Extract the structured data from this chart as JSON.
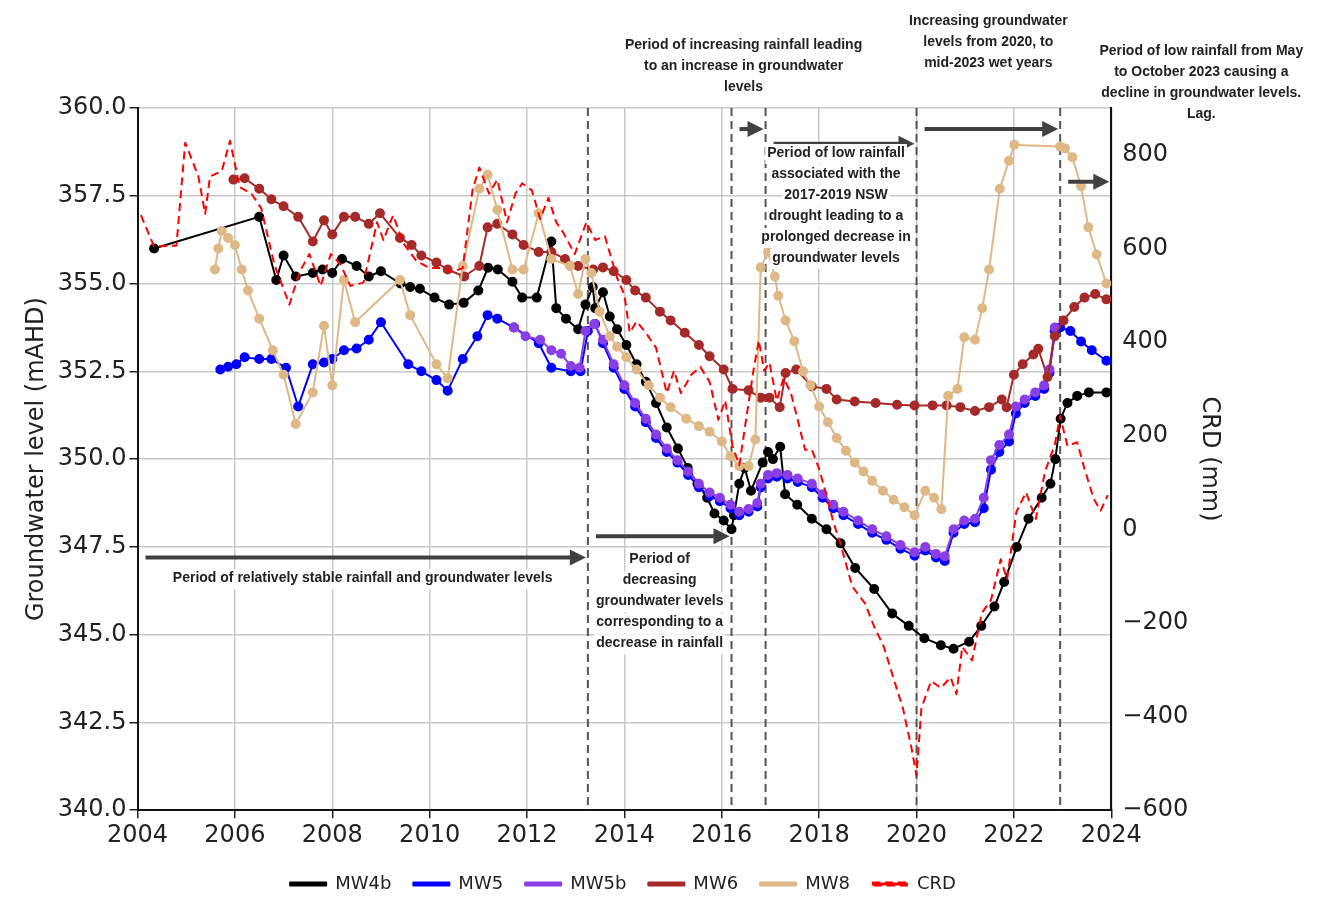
{
  "chart_data": {
    "type": "line",
    "ylabel": "Groundwater level (mAHD)",
    "y2label": "CRD (mm)",
    "xlim": [
      2004,
      2024
    ],
    "xticks": [
      2004,
      2006,
      2008,
      2010,
      2012,
      2014,
      2016,
      2018,
      2020,
      2022,
      2024
    ],
    "ylim": [
      340,
      360
    ],
    "yticks": [
      {
        "value": 340,
        "label": "340.0"
      },
      {
        "value": 342.5,
        "label": "342.5"
      },
      {
        "value": 345,
        "label": "345.0"
      },
      {
        "value": 347.5,
        "label": "347.5"
      },
      {
        "value": 350,
        "label": "350.0"
      },
      {
        "value": 352.5,
        "label": "352.5"
      },
      {
        "value": 355,
        "label": "355.0"
      },
      {
        "value": 357.5,
        "label": "357.5"
      },
      {
        "value": 360,
        "label": "360.0"
      }
    ],
    "y2lim": [
      -600,
      900
    ],
    "y2ticks": [
      {
        "value": -600,
        "label": "−600"
      },
      {
        "value": -400,
        "label": "−400"
      },
      {
        "value": -200,
        "label": "−200"
      },
      0,
      200,
      400,
      600,
      800
    ],
    "grid": true,
    "legend": "bottom",
    "series": [
      {
        "name": "MW4b",
        "color": "#000000",
        "marker": "circle",
        "line_style": "solid",
        "x": [
          2004.34,
          2006.5,
          2006.85,
          2007.0,
          2007.25,
          2007.6,
          2007.8,
          2008.0,
          2008.2,
          2008.5,
          2008.75,
          2009.0,
          2009.4,
          2009.6,
          2009.8,
          2010.1,
          2010.4,
          2010.7,
          2011.0,
          2011.2,
          2011.4,
          2011.7,
          2011.9,
          2012.2,
          2012.5,
          2012.6,
          2012.8,
          2013.05,
          2013.2,
          2013.35,
          2013.4,
          2013.56,
          2013.7,
          2013.85,
          2014.04,
          2014.25,
          2014.44,
          2014.65,
          2014.87,
          2015.1,
          2015.3,
          2015.5,
          2015.7,
          2015.85,
          2016.04,
          2016.2,
          2016.25,
          2016.36,
          2016.47,
          2016.6,
          2016.84,
          2016.95,
          2017.05,
          2017.2,
          2017.3,
          2017.55,
          2017.85,
          2018.15,
          2018.44,
          2018.74,
          2019.13,
          2019.5,
          2019.84,
          2020.16,
          2020.5,
          2020.76,
          2021.08,
          2021.33,
          2021.6,
          2021.8,
          2022.06,
          2022.3,
          2022.57,
          2022.75,
          2022.85,
          2022.96,
          2023.1,
          2023.3,
          2023.54,
          2023.9
        ],
        "values": [
          356.0,
          356.9,
          355.1,
          355.8,
          355.2,
          355.3,
          355.4,
          355.3,
          355.7,
          355.5,
          355.2,
          355.35,
          355.0,
          354.9,
          354.85,
          354.6,
          354.4,
          354.45,
          354.8,
          355.45,
          355.4,
          355.05,
          354.6,
          354.6,
          356.2,
          354.3,
          354.0,
          353.7,
          354.4,
          354.9,
          354.3,
          354.75,
          354.06,
          353.7,
          353.25,
          352.7,
          352.2,
          351.6,
          350.9,
          350.3,
          349.75,
          349.3,
          348.9,
          348.45,
          348.25,
          348.0,
          348.4,
          349.3,
          349.75,
          349.1,
          349.9,
          350.2,
          350.0,
          350.35,
          349.0,
          348.7,
          348.3,
          348.0,
          347.6,
          346.9,
          346.3,
          345.6,
          345.25,
          344.9,
          344.7,
          344.6,
          344.8,
          345.25,
          345.8,
          346.5,
          347.5,
          348.3,
          348.9,
          349.3,
          350.0,
          351.15,
          351.6,
          351.8,
          351.9,
          351.9
        ]
      },
      {
        "name": "MW5",
        "color": "#0000ff",
        "marker": "circle",
        "line_style": "solid",
        "x": [
          2005.7,
          2005.86,
          2006.03,
          2006.2,
          2006.5,
          2006.75,
          2007.05,
          2007.3,
          2007.6,
          2007.83,
          2008.0,
          2008.24,
          2008.5,
          2008.75,
          2009.0,
          2009.56,
          2009.83,
          2010.14,
          2010.37,
          2010.68,
          2010.98,
          2011.19,
          2011.39,
          2011.73,
          2012.24,
          2012.5,
          2012.9,
          2013.1,
          2013.25,
          2013.4,
          2013.56,
          2013.78,
          2014.0,
          2014.22,
          2014.44,
          2014.65,
          2014.87,
          2015.09,
          2015.31,
          2015.53,
          2015.75,
          2015.96,
          2016.18,
          2016.36,
          2016.55,
          2016.73,
          2016.8,
          2016.95,
          2017.13,
          2017.35,
          2017.56,
          2017.85,
          2018.07,
          2018.29,
          2018.5,
          2018.8,
          2019.09,
          2019.38,
          2019.67,
          2019.96,
          2020.18,
          2020.4,
          2020.58,
          2020.76,
          2020.98,
          2021.2,
          2021.38,
          2021.53,
          2021.7,
          2021.9,
          2022.04,
          2022.22,
          2022.44,
          2022.62,
          2022.73,
          2022.84,
          2022.95,
          2023.16,
          2023.38,
          2023.6,
          2023.9
        ],
        "values": [
          352.55,
          352.63,
          352.7,
          352.9,
          352.85,
          352.85,
          352.6,
          351.5,
          352.7,
          352.75,
          352.85,
          353.1,
          353.15,
          353.4,
          353.9,
          352.7,
          352.5,
          352.25,
          351.95,
          352.85,
          353.5,
          354.1,
          354.0,
          353.75,
          353.3,
          352.6,
          352.5,
          352.5,
          353.65,
          353.85,
          353.3,
          352.6,
          352.0,
          351.5,
          351.05,
          350.6,
          350.2,
          349.9,
          349.55,
          349.2,
          348.95,
          348.8,
          348.6,
          348.4,
          348.5,
          348.65,
          349.2,
          349.45,
          349.5,
          349.45,
          349.35,
          349.2,
          348.9,
          348.6,
          348.4,
          348.15,
          347.9,
          347.7,
          347.45,
          347.25,
          347.4,
          347.2,
          347.1,
          347.9,
          348.15,
          348.2,
          348.6,
          349.7,
          350.2,
          350.5,
          351.3,
          351.6,
          351.8,
          352.0,
          352.45,
          353.65,
          353.75,
          353.65,
          353.35,
          353.1,
          352.8
        ]
      },
      {
        "name": "MW5b",
        "color": "#8a3ee6",
        "marker": "circle",
        "line_style": "solid",
        "x": [
          2011.73,
          2011.97,
          2012.27,
          2012.5,
          2012.7,
          2012.9,
          2013.08,
          2013.2,
          2013.38,
          2013.56,
          2013.78,
          2014.0,
          2014.22,
          2014.44,
          2014.65,
          2014.87,
          2015.09,
          2015.31,
          2015.53,
          2015.75,
          2015.96,
          2016.18,
          2016.36,
          2016.55,
          2016.73,
          2016.8,
          2016.95,
          2017.13,
          2017.35,
          2017.56,
          2017.85,
          2018.07,
          2018.29,
          2018.5,
          2018.8,
          2019.09,
          2019.38,
          2019.67,
          2019.96,
          2020.18,
          2020.4,
          2020.58,
          2020.76,
          2020.98,
          2021.2,
          2021.38,
          2021.53,
          2021.7,
          2021.9,
          2022.04,
          2022.22,
          2022.44,
          2022.62,
          2022.73,
          2022.84
        ],
        "values": [
          353.75,
          353.5,
          353.4,
          353.1,
          353.0,
          352.65,
          352.6,
          353.65,
          353.85,
          353.4,
          352.7,
          352.1,
          351.6,
          351.15,
          350.7,
          350.3,
          349.97,
          349.65,
          349.3,
          349.05,
          348.9,
          348.7,
          348.5,
          348.58,
          348.75,
          349.3,
          349.55,
          349.6,
          349.55,
          349.45,
          349.3,
          349.0,
          348.7,
          348.5,
          348.25,
          348.0,
          347.8,
          347.55,
          347.35,
          347.5,
          347.3,
          347.23,
          348.0,
          348.25,
          348.3,
          348.9,
          349.97,
          350.4,
          350.7,
          351.5,
          351.7,
          351.9,
          352.1,
          352.55,
          353.75
        ]
      },
      {
        "name": "MW6",
        "color": "#a52a2a",
        "marker": "circle",
        "line_style": "solid",
        "x": [
          2005.97,
          2006.2,
          2006.5,
          2006.75,
          2007.0,
          2007.3,
          2007.6,
          2007.83,
          2008.0,
          2008.24,
          2008.47,
          2008.75,
          2008.98,
          2009.39,
          2009.63,
          2009.83,
          2010.14,
          2010.37,
          2010.71,
          2011.02,
          2011.19,
          2011.39,
          2011.7,
          2011.93,
          2012.24,
          2012.5,
          2012.78,
          2013.05,
          2013.36,
          2013.56,
          2013.78,
          2014.04,
          2014.22,
          2014.44,
          2014.73,
          2014.95,
          2015.24,
          2015.53,
          2015.75,
          2016.04,
          2016.22,
          2016.55,
          2016.8,
          2016.98,
          2017.19,
          2017.31,
          2017.53,
          2017.85,
          2018.15,
          2018.36,
          2018.73,
          2019.16,
          2019.6,
          2019.96,
          2020.33,
          2020.62,
          2020.9,
          2021.2,
          2021.49,
          2021.75,
          2021.85,
          2022.0,
          2022.18,
          2022.4,
          2022.5,
          2022.69,
          2022.84,
          2023.02,
          2023.24,
          2023.45,
          2023.67,
          2023.9
        ],
        "values": [
          357.96,
          358.0,
          357.7,
          357.4,
          357.2,
          356.9,
          356.2,
          356.8,
          356.4,
          356.9,
          356.9,
          356.7,
          357.0,
          356.3,
          356.1,
          355.8,
          355.6,
          355.4,
          355.2,
          355.5,
          356.6,
          356.7,
          356.4,
          356.1,
          355.9,
          355.9,
          355.7,
          355.5,
          355.4,
          355.46,
          355.35,
          355.1,
          354.8,
          354.6,
          354.2,
          353.95,
          353.6,
          353.25,
          352.93,
          352.55,
          352.0,
          351.96,
          351.75,
          351.75,
          351.48,
          352.45,
          352.55,
          352.07,
          352.0,
          351.7,
          351.64,
          351.6,
          351.55,
          351.53,
          351.53,
          351.53,
          351.48,
          351.37,
          351.48,
          351.7,
          351.48,
          352.4,
          352.7,
          352.98,
          353.14,
          352.34,
          353.5,
          353.95,
          354.33,
          354.6,
          354.7,
          354.55
        ]
      },
      {
        "name": "MW8",
        "color": "#deb887",
        "marker": "circle",
        "line_style": "solid",
        "x": [
          2005.59,
          2005.66,
          2005.73,
          2005.86,
          2006.0,
          2006.14,
          2006.27,
          2006.5,
          2006.78,
          2007.0,
          2007.25,
          2007.6,
          2007.83,
          2008.0,
          2008.24,
          2008.47,
          2009.39,
          2009.6,
          2010.14,
          2010.37,
          2010.68,
          2011.02,
          2011.19,
          2011.39,
          2011.7,
          2011.93,
          2012.24,
          2012.5,
          2012.88,
          2013.05,
          2013.2,
          2013.32,
          2013.49,
          2013.7,
          2013.85,
          2014.04,
          2014.25,
          2014.5,
          2014.73,
          2014.95,
          2015.27,
          2015.53,
          2015.75,
          2016.0,
          2016.18,
          2016.36,
          2016.55,
          2016.69,
          2016.8,
          2016.95,
          2017.09,
          2017.16,
          2017.31,
          2017.49,
          2017.67,
          2017.82,
          2018.0,
          2018.18,
          2018.36,
          2018.55,
          2018.73,
          2018.91,
          2019.09,
          2019.31,
          2019.53,
          2019.75,
          2019.96,
          2020.18,
          2020.36,
          2020.51,
          2020.65,
          2020.84,
          2020.98,
          2021.2,
          2021.35,
          2021.49,
          2021.71,
          2021.9,
          2022.01,
          2022.95,
          2023.05,
          2023.2,
          2023.38,
          2023.53,
          2023.7,
          2023.9
        ],
        "values": [
          355.4,
          356.0,
          356.5,
          356.3,
          356.1,
          355.4,
          354.8,
          354.0,
          353.1,
          352.4,
          351.0,
          351.9,
          353.8,
          352.1,
          355.1,
          353.9,
          355.1,
          354.1,
          352.7,
          352.3,
          355.5,
          357.7,
          358.1,
          357.1,
          355.4,
          355.4,
          357.0,
          355.7,
          355.5,
          354.7,
          355.7,
          355.3,
          354.2,
          353.5,
          353.2,
          352.9,
          352.55,
          352.1,
          351.75,
          351.48,
          351.15,
          350.94,
          350.78,
          350.5,
          350.08,
          349.8,
          349.8,
          350.56,
          355.46,
          355.9,
          355.2,
          354.65,
          353.95,
          353.36,
          352.5,
          352.1,
          351.5,
          351.05,
          350.6,
          350.24,
          349.9,
          349.65,
          349.38,
          349.1,
          348.84,
          348.63,
          348.4,
          349.1,
          348.9,
          348.57,
          351.8,
          352.0,
          353.47,
          353.4,
          354.3,
          355.4,
          357.7,
          358.5,
          358.95,
          358.9,
          358.85,
          358.6,
          357.77,
          356.6,
          355.83,
          355.0
        ]
      },
      {
        "name": "CRD",
        "color": "#ff0000",
        "marker": "none",
        "line_style": "dashed",
        "axis": "y2",
        "x": [
          2004.07,
          2004.34,
          2004.8,
          2004.98,
          2005.25,
          2005.39,
          2005.49,
          2005.73,
          2005.9,
          2006.1,
          2006.34,
          2006.54,
          2006.81,
          2007.12,
          2007.33,
          2007.53,
          2007.76,
          2007.97,
          2008.17,
          2008.37,
          2008.64,
          2008.92,
          2009.05,
          2009.25,
          2009.46,
          2009.73,
          2010.0,
          2010.27,
          2010.47,
          2010.68,
          2010.88,
          2011.02,
          2011.22,
          2011.39,
          2011.59,
          2011.76,
          2011.9,
          2012.1,
          2012.27,
          2012.44,
          2012.6,
          2012.75,
          2012.98,
          2013.22,
          2013.4,
          2013.6,
          2013.85,
          2014.0,
          2014.11,
          2014.25,
          2014.44,
          2014.65,
          2014.87,
          2015.02,
          2015.16,
          2015.38,
          2015.56,
          2015.75,
          2015.93,
          2016.07,
          2016.22,
          2016.36,
          2016.51,
          2016.65,
          2016.76,
          2016.87,
          2016.98,
          2017.13,
          2017.27,
          2017.42,
          2017.56,
          2017.71,
          2017.85,
          2018.0,
          2018.15,
          2018.29,
          2018.44,
          2018.68,
          2018.94,
          2019.13,
          2019.33,
          2019.52,
          2019.72,
          2019.9,
          2020.0,
          2020.1,
          2020.3,
          2020.5,
          2020.7,
          2020.82,
          2020.94,
          2021.14,
          2021.34,
          2021.53,
          2021.73,
          2021.86,
          2022.05,
          2022.25,
          2022.45,
          2022.64,
          2022.84,
          2022.95,
          2023.1,
          2023.3,
          2023.45,
          2023.64,
          2023.78,
          2023.93
        ],
        "values": [
          671,
          604,
          606,
          826,
          754,
          674,
          754,
          765,
          830,
          731,
          717,
          686,
          566,
          480,
          550,
          588,
          520,
          588,
          566,
          520,
          527,
          656,
          618,
          671,
          611,
          573,
          558,
          558,
          550,
          558,
          724,
          773,
          717,
          747,
          656,
          717,
          739,
          724,
          663,
          708,
          656,
          633,
          588,
          656,
          618,
          626,
          537,
          501,
          420,
          444,
          420,
          388,
          291,
          339,
          291,
          331,
          347,
          315,
          234,
          275,
          178,
          137,
          242,
          339,
          404,
          339,
          356,
          275,
          323,
          291,
          234,
          170,
          170,
          129,
          73,
          16,
          -32,
          -122,
          -158,
          -208,
          -251,
          -316,
          -382,
          -469,
          -526,
          -382,
          -324,
          -339,
          -316,
          -352,
          -251,
          -280,
          -179,
          -151,
          -64,
          -107,
          37,
          79,
          22,
          124,
          181,
          242,
          178,
          186,
          129,
          65,
          40,
          73
        ]
      }
    ],
    "ref_lines": [
      {
        "axis": "x",
        "value": 2013.25,
        "color": "#555555",
        "line_style": "dashed"
      },
      {
        "axis": "x",
        "value": 2016.2,
        "color": "#555555",
        "line_style": "dashed"
      },
      {
        "axis": "x",
        "value": 2016.9,
        "color": "#555555",
        "line_style": "dashed"
      },
      {
        "axis": "x",
        "value": 2020.0,
        "color": "#555555",
        "line_style": "dashed"
      },
      {
        "axis": "x",
        "value": 2022.95,
        "color": "#555555",
        "line_style": "dashed"
      }
    ],
    "annotations": [
      "Period of relatively stable rainfall and groundwater levels",
      "Period of decreasing groundwater levels corresponding to a decrease in rainfall",
      "Period of increasing rainfall leading to an increase in groundwater levels",
      "Period of low rainfall associated with the 2017-2019 NSW drought leading to a prolonged decrease in groundwater levels",
      "Increasing groundwater levels from 2020, to mid-2023 wet years",
      "Period of low rainfall from May to October 2023 causing a decline in groundwater levels. Lag."
    ]
  }
}
